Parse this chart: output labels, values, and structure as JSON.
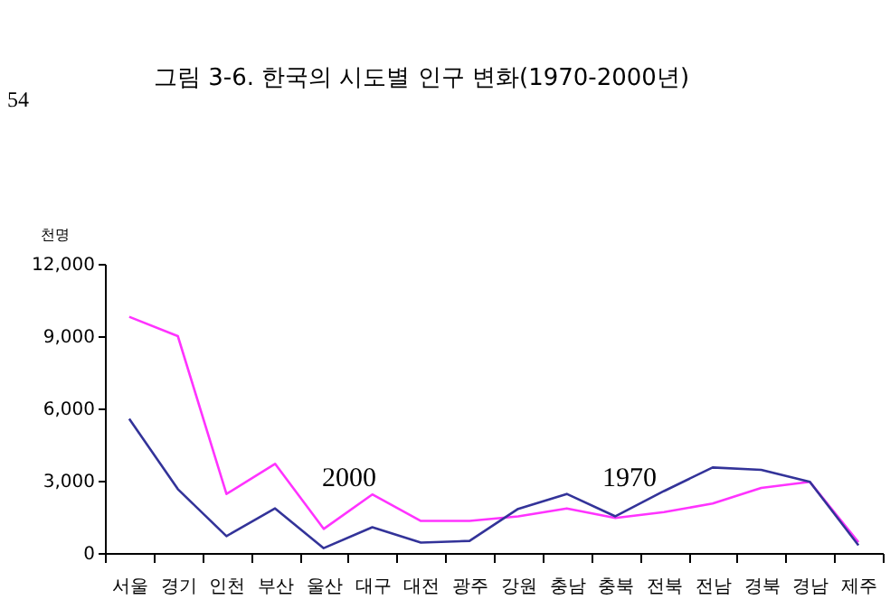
{
  "chart_data": {
    "type": "line",
    "title": "그림 3-6.  한국의 시도별 인구 변화(1970-2000년)",
    "ylabel": "천명",
    "annotations": [
      "54"
    ],
    "categories": [
      "서울",
      "경기",
      "인천",
      "부산",
      "울산",
      "대구",
      "대전",
      "광주",
      "강원",
      "충남",
      "충북",
      "전북",
      "전남",
      "경북",
      "경남",
      "제주"
    ],
    "series": [
      {
        "name": "2000",
        "color": "#ff33ff",
        "values": [
          9800,
          9000,
          2450,
          3700,
          1000,
          2430,
          1330,
          1330,
          1520,
          1850,
          1450,
          1700,
          2050,
          2700,
          2950,
          450
        ]
      },
      {
        "name": "1970",
        "color": "#333399",
        "values": [
          5570,
          2650,
          700,
          1850,
          200,
          1070,
          430,
          500,
          1830,
          2450,
          1520,
          2570,
          3550,
          3450,
          2950,
          320
        ]
      }
    ],
    "ylim": [
      0,
      12000
    ],
    "yticks": [
      0,
      {
        "value": 3000,
        "label": "3,000"
      },
      {
        "value": 6000,
        "label": "6,000"
      },
      {
        "value": 9000,
        "label": "9,000"
      },
      {
        "value": 12000,
        "label": "12,000"
      }
    ],
    "grid": false,
    "marker": "none",
    "line_style": "solid"
  }
}
